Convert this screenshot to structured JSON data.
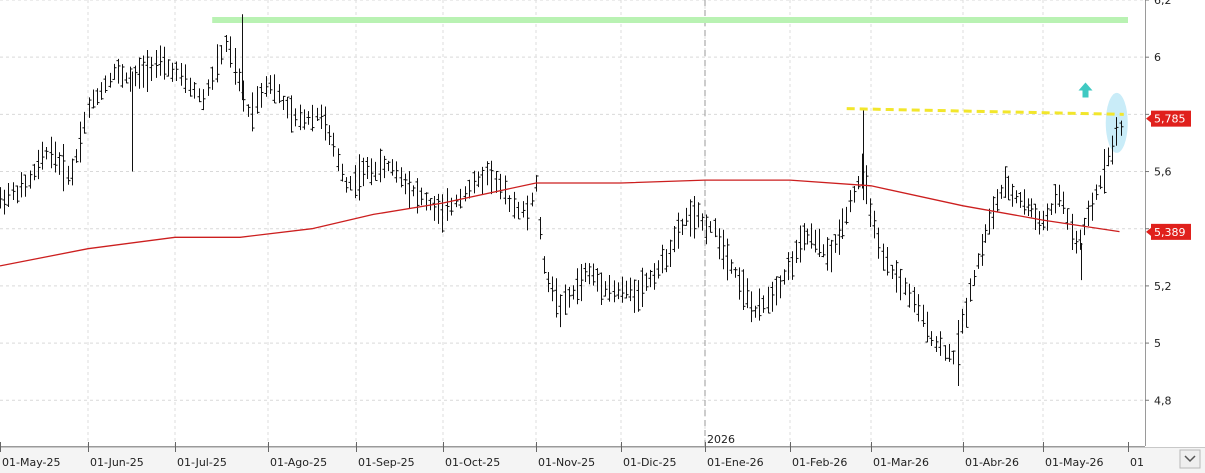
{
  "chart_data": {
    "type": "ohlc-bar",
    "title": "",
    "xlabel": "",
    "ylabel": "",
    "ylim": [
      4.64,
      6.2
    ],
    "y_ticks": [
      4.8,
      5,
      5.2,
      5.4,
      5.6,
      5.8,
      6,
      6.2
    ],
    "y_tick_labels": [
      "4,8",
      "5",
      "5,2",
      "",
      "5,6",
      "",
      "6",
      "6,2"
    ],
    "x_tick_labels": [
      "01-May-25",
      "01-Jun-25",
      "01-Jul-25",
      "01-Ago-25",
      "01-Sep-25",
      "01-Oct-25",
      "01-Nov-25",
      "01-Dic-25",
      "01-Ene-26",
      "01-Feb-26",
      "01-Mar-26",
      "01-Abr-26",
      "01-May-26",
      "01"
    ],
    "year_marker": "2026",
    "last_price": {
      "value": 5.785,
      "label": "5,785",
      "color": "#e0201c"
    },
    "moving_average_last": {
      "value": 5.389,
      "label": "5,389",
      "color": "#e0201c"
    },
    "price_series_color": "#111111",
    "moving_average_color": "#cc1f1f",
    "moving_average": [
      {
        "month": 0,
        "v": 5.27
      },
      {
        "month": 1,
        "v": 5.33
      },
      {
        "month": 2,
        "v": 5.37
      },
      {
        "month": 2.7,
        "v": 5.37
      },
      {
        "month": 3.5,
        "v": 5.4
      },
      {
        "month": 4.2,
        "v": 5.45
      },
      {
        "month": 5,
        "v": 5.49
      },
      {
        "month": 6,
        "v": 5.56
      },
      {
        "month": 7,
        "v": 5.56
      },
      {
        "month": 8,
        "v": 5.57
      },
      {
        "month": 9,
        "v": 5.57
      },
      {
        "month": 10,
        "v": 5.55
      },
      {
        "month": 11,
        "v": 5.48
      },
      {
        "month": 12,
        "v": 5.43
      },
      {
        "month": 12.9,
        "v": 5.39
      }
    ],
    "price_path": [
      {
        "month": 0.0,
        "v": 5.5
      },
      {
        "month": 0.3,
        "v": 5.55
      },
      {
        "month": 0.55,
        "v": 5.68
      },
      {
        "month": 0.8,
        "v": 5.58
      },
      {
        "month": 1.0,
        "v": 5.82
      },
      {
        "month": 1.3,
        "v": 5.95
      },
      {
        "month": 1.5,
        "v": 5.92
      },
      {
        "month": 1.75,
        "v": 5.98
      },
      {
        "month": 2.0,
        "v": 5.95
      },
      {
        "month": 2.3,
        "v": 5.85
      },
      {
        "month": 2.55,
        "v": 6.05
      },
      {
        "month": 2.8,
        "v": 5.8
      },
      {
        "month": 3.0,
        "v": 5.92
      },
      {
        "month": 3.3,
        "v": 5.78
      },
      {
        "month": 3.6,
        "v": 5.8
      },
      {
        "month": 3.9,
        "v": 5.55
      },
      {
        "month": 4.1,
        "v": 5.6
      },
      {
        "month": 4.4,
        "v": 5.62
      },
      {
        "month": 4.7,
        "v": 5.52
      },
      {
        "month": 5.0,
        "v": 5.45
      },
      {
        "month": 5.2,
        "v": 5.52
      },
      {
        "month": 5.5,
        "v": 5.6
      },
      {
        "month": 5.7,
        "v": 5.5
      },
      {
        "month": 5.9,
        "v": 5.45
      },
      {
        "month": 6.0,
        "v": 5.55
      },
      {
        "month": 6.1,
        "v": 5.25
      },
      {
        "month": 6.3,
        "v": 5.12
      },
      {
        "month": 6.6,
        "v": 5.25
      },
      {
        "month": 6.9,
        "v": 5.18
      },
      {
        "month": 7.2,
        "v": 5.18
      },
      {
        "month": 7.5,
        "v": 5.28
      },
      {
        "month": 7.8,
        "v": 5.45
      },
      {
        "month": 8.1,
        "v": 5.4
      },
      {
        "month": 8.3,
        "v": 5.28
      },
      {
        "month": 8.6,
        "v": 5.1
      },
      {
        "month": 8.9,
        "v": 5.22
      },
      {
        "month": 9.2,
        "v": 5.38
      },
      {
        "month": 9.5,
        "v": 5.3
      },
      {
        "month": 9.75,
        "v": 5.5
      },
      {
        "month": 9.9,
        "v": 5.6
      },
      {
        "month": 10.1,
        "v": 5.3
      },
      {
        "month": 10.4,
        "v": 5.18
      },
      {
        "month": 10.7,
        "v": 5.0
      },
      {
        "month": 10.9,
        "v": 4.95
      },
      {
        "month": 11.1,
        "v": 5.2
      },
      {
        "month": 11.3,
        "v": 5.4
      },
      {
        "month": 11.5,
        "v": 5.55
      },
      {
        "month": 11.8,
        "v": 5.48
      },
      {
        "month": 12.0,
        "v": 5.42
      },
      {
        "month": 12.2,
        "v": 5.52
      },
      {
        "month": 12.4,
        "v": 5.33
      },
      {
        "month": 12.6,
        "v": 5.5
      },
      {
        "month": 12.8,
        "v": 5.68
      },
      {
        "month": 12.95,
        "v": 5.785
      }
    ],
    "annotations": [
      {
        "type": "horizontal-line",
        "value": 6.13,
        "from_month": 2.4,
        "to_month": 13.0,
        "color": "#b9f2b3"
      },
      {
        "type": "dashed-line",
        "value": 5.82,
        "to_value": 5.8,
        "from_month": 9.7,
        "to_month": 12.95,
        "color": "#f2e62b"
      },
      {
        "type": "arrow-up",
        "month": 12.5,
        "value": 5.88,
        "color": "#3fc9c2"
      },
      {
        "type": "ellipse-highlight",
        "month": 12.95,
        "value": 5.77,
        "color": "#bfe9f7"
      }
    ],
    "grid": true,
    "legend": "none"
  }
}
